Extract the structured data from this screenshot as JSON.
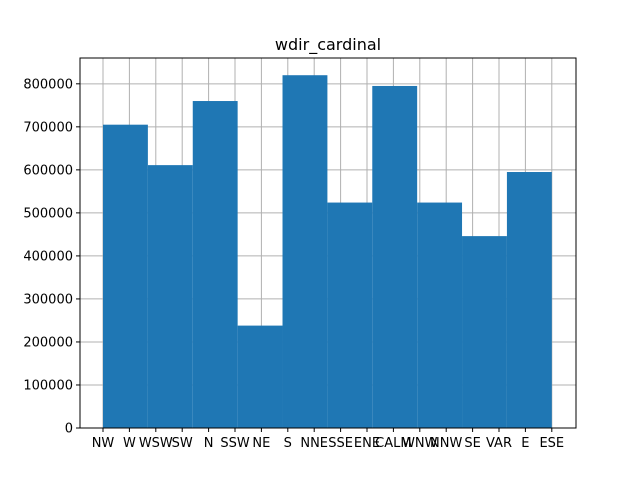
{
  "chart_data": {
    "type": "bar",
    "title": "wdir_cardinal",
    "xlabel": "",
    "ylabel": "",
    "categories": [
      "NW",
      "W",
      "WSW",
      "SW",
      "N",
      "SSW",
      "NE",
      "S",
      "NNE",
      "SSE",
      "ENE",
      "CALM",
      "WNW",
      "NNW",
      "SE",
      "VAR",
      "E",
      "ESE"
    ],
    "bins": [
      {
        "label": "NW, W",
        "value": 705000
      },
      {
        "label": "WSW, SW",
        "value": 611000
      },
      {
        "label": "N, SSW",
        "value": 760000
      },
      {
        "label": "NE, S",
        "value": 238000
      },
      {
        "label": "NNE, SSE",
        "value": 820000
      },
      {
        "label": "ENE, CALM",
        "value": 524000
      },
      {
        "label": "CALM",
        "value": 795000
      },
      {
        "label": "WNW, NNW",
        "value": 524000
      },
      {
        "label": "SE, VAR",
        "value": 446000
      },
      {
        "label": "E, ESE",
        "value": 595000
      }
    ],
    "y_ticks": [
      "0",
      "100000",
      "200000",
      "300000",
      "400000",
      "500000",
      "600000",
      "700000",
      "800000"
    ],
    "ylim": [
      0,
      860000
    ],
    "grid": true,
    "bar_color": "#1f77b4"
  }
}
